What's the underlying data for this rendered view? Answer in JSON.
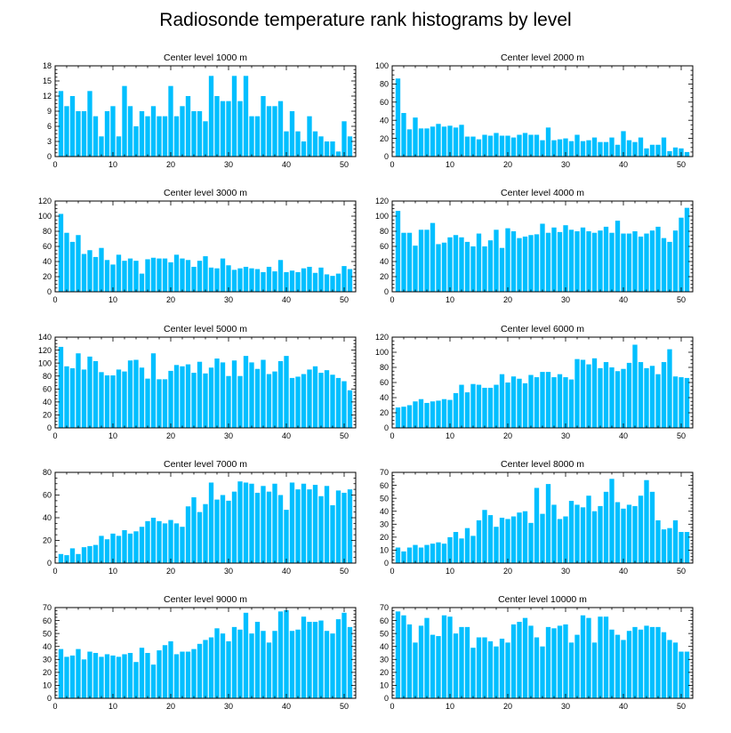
{
  "title": "Radiosonde temperature rank histograms by level",
  "colors": {
    "bar": "#00bfff",
    "axis": "#000000"
  },
  "chart_data": [
    {
      "type": "bar",
      "title": "Center level 1000 m",
      "xlim": [
        0,
        52
      ],
      "ylim": [
        0,
        18
      ],
      "xticks": [
        0,
        10,
        20,
        30,
        40,
        50
      ],
      "yticks": [
        0,
        3,
        6,
        9,
        12,
        15,
        18
      ],
      "x": [
        1,
        2,
        3,
        4,
        5,
        6,
        7,
        8,
        9,
        10,
        11,
        12,
        13,
        14,
        15,
        16,
        17,
        18,
        19,
        20,
        21,
        22,
        23,
        24,
        25,
        26,
        27,
        28,
        29,
        30,
        31,
        32,
        33,
        34,
        35,
        36,
        37,
        38,
        39,
        40,
        41,
        42,
        43,
        44,
        45,
        46,
        47,
        48,
        49,
        50,
        51
      ],
      "values": [
        13,
        10,
        12,
        9,
        9,
        13,
        8,
        4,
        9,
        10,
        4,
        14,
        10,
        6,
        9,
        8,
        10,
        8,
        8,
        14,
        8,
        10,
        12,
        9,
        9,
        7,
        16,
        12,
        11,
        11,
        16,
        11,
        16,
        8,
        8,
        12,
        10,
        10,
        11,
        5,
        9,
        5,
        3,
        8,
        5,
        4,
        3,
        3,
        1,
        7,
        4
      ]
    },
    {
      "type": "bar",
      "title": "Center level 2000 m",
      "xlim": [
        0,
        52
      ],
      "ylim": [
        0,
        100
      ],
      "xticks": [
        0,
        10,
        20,
        30,
        40,
        50
      ],
      "yticks": [
        0,
        20,
        40,
        60,
        80,
        100
      ],
      "x": [
        1,
        2,
        3,
        4,
        5,
        6,
        7,
        8,
        9,
        10,
        11,
        12,
        13,
        14,
        15,
        16,
        17,
        18,
        19,
        20,
        21,
        22,
        23,
        24,
        25,
        26,
        27,
        28,
        29,
        30,
        31,
        32,
        33,
        34,
        35,
        36,
        37,
        38,
        39,
        40,
        41,
        42,
        43,
        44,
        45,
        46,
        47,
        48,
        49,
        50,
        51
      ],
      "values": [
        86,
        48,
        30,
        43,
        31,
        31,
        33,
        36,
        33,
        34,
        32,
        35,
        22,
        22,
        19,
        24,
        23,
        26,
        23,
        23,
        21,
        24,
        26,
        24,
        24,
        18,
        32,
        18,
        19,
        20,
        17,
        24,
        17,
        18,
        21,
        16,
        16,
        21,
        13,
        28,
        18,
        16,
        21,
        9,
        13,
        13,
        21,
        6,
        10,
        9,
        5
      ]
    },
    {
      "type": "bar",
      "title": "Center level 3000 m",
      "xlim": [
        0,
        52
      ],
      "ylim": [
        0,
        120
      ],
      "xticks": [
        0,
        10,
        20,
        30,
        40,
        50
      ],
      "yticks": [
        0,
        20,
        40,
        60,
        80,
        100,
        120
      ],
      "x": [
        1,
        2,
        3,
        4,
        5,
        6,
        7,
        8,
        9,
        10,
        11,
        12,
        13,
        14,
        15,
        16,
        17,
        18,
        19,
        20,
        21,
        22,
        23,
        24,
        25,
        26,
        27,
        28,
        29,
        30,
        31,
        32,
        33,
        34,
        35,
        36,
        37,
        38,
        39,
        40,
        41,
        42,
        43,
        44,
        45,
        46,
        47,
        48,
        49,
        50,
        51
      ],
      "values": [
        103,
        78,
        66,
        75,
        50,
        55,
        46,
        58,
        42,
        36,
        49,
        41,
        44,
        41,
        24,
        43,
        45,
        44,
        44,
        39,
        49,
        44,
        42,
        33,
        41,
        47,
        32,
        31,
        44,
        35,
        29,
        31,
        33,
        31,
        30,
        26,
        33,
        27,
        42,
        26,
        28,
        26,
        31,
        33,
        25,
        32,
        23,
        21,
        24,
        34,
        30
      ]
    },
    {
      "type": "bar",
      "title": "Center level 4000 m",
      "xlim": [
        0,
        52
      ],
      "ylim": [
        0,
        120
      ],
      "xticks": [
        0,
        10,
        20,
        30,
        40,
        50
      ],
      "yticks": [
        0,
        20,
        40,
        60,
        80,
        100,
        120
      ],
      "x": [
        1,
        2,
        3,
        4,
        5,
        6,
        7,
        8,
        9,
        10,
        11,
        12,
        13,
        14,
        15,
        16,
        17,
        18,
        19,
        20,
        21,
        22,
        23,
        24,
        25,
        26,
        27,
        28,
        29,
        30,
        31,
        32,
        33,
        34,
        35,
        36,
        37,
        38,
        39,
        40,
        41,
        42,
        43,
        44,
        45,
        46,
        47,
        48,
        49,
        50,
        51
      ],
      "values": [
        107,
        78,
        78,
        61,
        82,
        82,
        91,
        63,
        65,
        72,
        75,
        72,
        66,
        60,
        77,
        60,
        68,
        82,
        58,
        84,
        80,
        71,
        73,
        75,
        76,
        90,
        78,
        85,
        79,
        88,
        82,
        80,
        85,
        80,
        78,
        81,
        86,
        78,
        94,
        77,
        77,
        80,
        73,
        77,
        81,
        86,
        71,
        66,
        81,
        98,
        111
      ]
    },
    {
      "type": "bar",
      "title": "Center level 5000 m",
      "xlim": [
        0,
        52
      ],
      "ylim": [
        0,
        140
      ],
      "xticks": [
        0,
        10,
        20,
        30,
        40,
        50
      ],
      "yticks": [
        0,
        20,
        40,
        60,
        80,
        100,
        120,
        140
      ],
      "x": [
        1,
        2,
        3,
        4,
        5,
        6,
        7,
        8,
        9,
        10,
        11,
        12,
        13,
        14,
        15,
        16,
        17,
        18,
        19,
        20,
        21,
        22,
        23,
        24,
        25,
        26,
        27,
        28,
        29,
        30,
        31,
        32,
        33,
        34,
        35,
        36,
        37,
        38,
        39,
        40,
        41,
        42,
        43,
        44,
        45,
        46,
        47,
        48,
        49,
        50,
        51
      ],
      "values": [
        125,
        95,
        92,
        115,
        90,
        110,
        103,
        86,
        81,
        81,
        90,
        87,
        104,
        105,
        93,
        76,
        115,
        75,
        75,
        88,
        97,
        95,
        98,
        85,
        102,
        84,
        93,
        107,
        101,
        80,
        104,
        80,
        111,
        101,
        91,
        105,
        83,
        87,
        103,
        111,
        77,
        79,
        83,
        90,
        95,
        85,
        89,
        82,
        77,
        72,
        58
      ]
    },
    {
      "type": "bar",
      "title": "Center level 6000 m",
      "xlim": [
        0,
        52
      ],
      "ylim": [
        0,
        120
      ],
      "xticks": [
        0,
        10,
        20,
        30,
        40,
        50
      ],
      "yticks": [
        0,
        20,
        40,
        60,
        80,
        100,
        120
      ],
      "x": [
        1,
        2,
        3,
        4,
        5,
        6,
        7,
        8,
        9,
        10,
        11,
        12,
        13,
        14,
        15,
        16,
        17,
        18,
        19,
        20,
        21,
        22,
        23,
        24,
        25,
        26,
        27,
        28,
        29,
        30,
        31,
        32,
        33,
        34,
        35,
        36,
        37,
        38,
        39,
        40,
        41,
        42,
        43,
        44,
        45,
        46,
        47,
        48,
        49,
        50,
        51
      ],
      "values": [
        27,
        28,
        30,
        35,
        38,
        33,
        35,
        36,
        38,
        37,
        46,
        57,
        47,
        58,
        57,
        53,
        53,
        57,
        71,
        60,
        68,
        65,
        59,
        70,
        67,
        74,
        74,
        67,
        71,
        67,
        64,
        91,
        90,
        84,
        92,
        79,
        87,
        80,
        75,
        78,
        86,
        110,
        87,
        79,
        82,
        71,
        87,
        104,
        68,
        67,
        66
      ]
    },
    {
      "type": "bar",
      "title": "Center level 7000 m",
      "xlim": [
        0,
        52
      ],
      "ylim": [
        0,
        80
      ],
      "xticks": [
        0,
        10,
        20,
        30,
        40,
        50
      ],
      "yticks": [
        0,
        20,
        40,
        60,
        80
      ],
      "x": [
        1,
        2,
        3,
        4,
        5,
        6,
        7,
        8,
        9,
        10,
        11,
        12,
        13,
        14,
        15,
        16,
        17,
        18,
        19,
        20,
        21,
        22,
        23,
        24,
        25,
        26,
        27,
        28,
        29,
        30,
        31,
        32,
        33,
        34,
        35,
        36,
        37,
        38,
        39,
        40,
        41,
        42,
        43,
        44,
        45,
        46,
        47,
        48,
        49,
        50,
        51
      ],
      "values": [
        8,
        7,
        13,
        8,
        14,
        15,
        16,
        24,
        21,
        26,
        24,
        29,
        26,
        28,
        32,
        37,
        40,
        37,
        35,
        38,
        35,
        32,
        50,
        58,
        45,
        52,
        71,
        56,
        60,
        55,
        63,
        72,
        71,
        70,
        62,
        68,
        63,
        70,
        60,
        47,
        71,
        65,
        70,
        65,
        69,
        59,
        68,
        51,
        64,
        62,
        65
      ]
    },
    {
      "type": "bar",
      "title": "Center level 8000 m",
      "xlim": [
        0,
        52
      ],
      "ylim": [
        0,
        70
      ],
      "xticks": [
        0,
        10,
        20,
        30,
        40,
        50
      ],
      "yticks": [
        0,
        10,
        20,
        30,
        40,
        50,
        60,
        70
      ],
      "x": [
        1,
        2,
        3,
        4,
        5,
        6,
        7,
        8,
        9,
        10,
        11,
        12,
        13,
        14,
        15,
        16,
        17,
        18,
        19,
        20,
        21,
        22,
        23,
        24,
        25,
        26,
        27,
        28,
        29,
        30,
        31,
        32,
        33,
        34,
        35,
        36,
        37,
        38,
        39,
        40,
        41,
        42,
        43,
        44,
        45,
        46,
        47,
        48,
        49,
        50,
        51
      ],
      "values": [
        12,
        9,
        12,
        14,
        12,
        14,
        15,
        16,
        15,
        20,
        24,
        19,
        27,
        21,
        33,
        41,
        37,
        28,
        35,
        34,
        36,
        39,
        40,
        31,
        58,
        38,
        61,
        45,
        34,
        36,
        48,
        45,
        43,
        52,
        40,
        44,
        55,
        65,
        47,
        42,
        45,
        44,
        52,
        64,
        55,
        33,
        26,
        27,
        33,
        24,
        24
      ]
    },
    {
      "type": "bar",
      "title": "Center level 9000 m",
      "xlim": [
        0,
        52
      ],
      "ylim": [
        0,
        70
      ],
      "xticks": [
        0,
        10,
        20,
        30,
        40,
        50
      ],
      "yticks": [
        0,
        10,
        20,
        30,
        40,
        50,
        60,
        70
      ],
      "x": [
        1,
        2,
        3,
        4,
        5,
        6,
        7,
        8,
        9,
        10,
        11,
        12,
        13,
        14,
        15,
        16,
        17,
        18,
        19,
        20,
        21,
        22,
        23,
        24,
        25,
        26,
        27,
        28,
        29,
        30,
        31,
        32,
        33,
        34,
        35,
        36,
        37,
        38,
        39,
        40,
        41,
        42,
        43,
        44,
        45,
        46,
        47,
        48,
        49,
        50,
        51
      ],
      "values": [
        38,
        32,
        33,
        38,
        30,
        36,
        35,
        32,
        34,
        33,
        32,
        34,
        35,
        28,
        39,
        35,
        26,
        37,
        41,
        44,
        34,
        36,
        36,
        38,
        42,
        45,
        47,
        54,
        50,
        44,
        55,
        53,
        66,
        50,
        59,
        52,
        43,
        52,
        67,
        68,
        52,
        53,
        63,
        59,
        59,
        60,
        52,
        50,
        61,
        66,
        55
      ]
    },
    {
      "type": "bar",
      "title": "Center level 10000 m",
      "xlim": [
        0,
        52
      ],
      "ylim": [
        0,
        70
      ],
      "xticks": [
        0,
        10,
        20,
        30,
        40,
        50
      ],
      "yticks": [
        0,
        10,
        20,
        30,
        40,
        50,
        60,
        70
      ],
      "x": [
        1,
        2,
        3,
        4,
        5,
        6,
        7,
        8,
        9,
        10,
        11,
        12,
        13,
        14,
        15,
        16,
        17,
        18,
        19,
        20,
        21,
        22,
        23,
        24,
        25,
        26,
        27,
        28,
        29,
        30,
        31,
        32,
        33,
        34,
        35,
        36,
        37,
        38,
        39,
        40,
        41,
        42,
        43,
        44,
        45,
        46,
        47,
        48,
        49,
        50,
        51
      ],
      "values": [
        67,
        64,
        57,
        43,
        56,
        62,
        49,
        48,
        64,
        63,
        50,
        55,
        55,
        39,
        47,
        47,
        44,
        40,
        46,
        43,
        57,
        59,
        62,
        56,
        47,
        40,
        55,
        54,
        56,
        57,
        43,
        49,
        64,
        62,
        43,
        63,
        63,
        53,
        49,
        45,
        52,
        55,
        53,
        56,
        55,
        55,
        51,
        45,
        43,
        36,
        36
      ]
    }
  ]
}
